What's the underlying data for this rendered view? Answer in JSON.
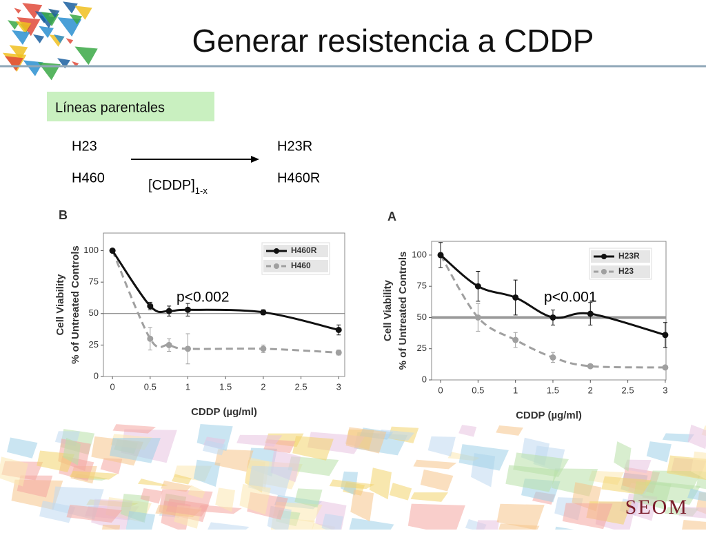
{
  "title": "Generar resistencia a CDDP",
  "label_box": "Líneas parentales",
  "scheme": {
    "left": [
      "H23",
      "H460"
    ],
    "arrow_label": "[CDDP]",
    "arrow_subscript": "1-x",
    "right": [
      "H23R",
      "H460R"
    ]
  },
  "logo": "SEOM",
  "chart_data": [
    {
      "panel": "B",
      "type": "line",
      "ylabel": [
        "Cell Viability",
        "% of Untreated Controls"
      ],
      "xlabel": "CDDP (µg/ml)",
      "x": [
        0,
        0.5,
        0.75,
        1,
        2,
        3
      ],
      "xlim": [
        -0.12,
        3.08
      ],
      "xticks": [
        0,
        0.5,
        1,
        1.5,
        2,
        2.5,
        3
      ],
      "ylim": [
        0,
        114
      ],
      "yticks": [
        0,
        25,
        50,
        75,
        100
      ],
      "ref_line": 50,
      "annotation": "p<0.002",
      "legend": "upper right",
      "series": [
        {
          "name": "H460R",
          "color": "#111111",
          "dashed": false,
          "values": [
            100,
            56,
            52,
            53,
            51,
            37
          ],
          "errors": [
            0,
            3,
            4,
            5,
            2,
            4
          ]
        },
        {
          "name": "H460",
          "color": "#a0a0a0",
          "dashed": true,
          "values": [
            100,
            30,
            25,
            22,
            22,
            19
          ],
          "errors": [
            0,
            9,
            5,
            12,
            3,
            2
          ]
        }
      ]
    },
    {
      "panel": "A",
      "type": "line",
      "ylabel": [
        "Cell Viability",
        "% of Untreated Controls"
      ],
      "xlabel": "CDDP (µg/ml)",
      "x": [
        0,
        0.5,
        1,
        1.5,
        2,
        3
      ],
      "xlim": [
        -0.12,
        3.01
      ],
      "xticks": [
        0,
        0.5,
        1,
        1.5,
        2,
        2.5,
        3
      ],
      "ylim": [
        0,
        111
      ],
      "yticks": [
        0,
        25,
        50,
        75,
        100
      ],
      "ref_line": 50,
      "annotation": "p<0.001",
      "legend": "upper right",
      "series": [
        {
          "name": "H23R",
          "color": "#111111",
          "dashed": false,
          "values": [
            100,
            75,
            66,
            50,
            53,
            36
          ],
          "errors": [
            10,
            12,
            14,
            6,
            9,
            10
          ]
        },
        {
          "name": "H23",
          "color": "#a0a0a0",
          "dashed": true,
          "values": [
            100,
            50,
            32,
            18,
            11,
            10
          ],
          "errors": [
            0,
            11,
            6,
            4,
            1,
            1
          ]
        }
      ]
    }
  ]
}
